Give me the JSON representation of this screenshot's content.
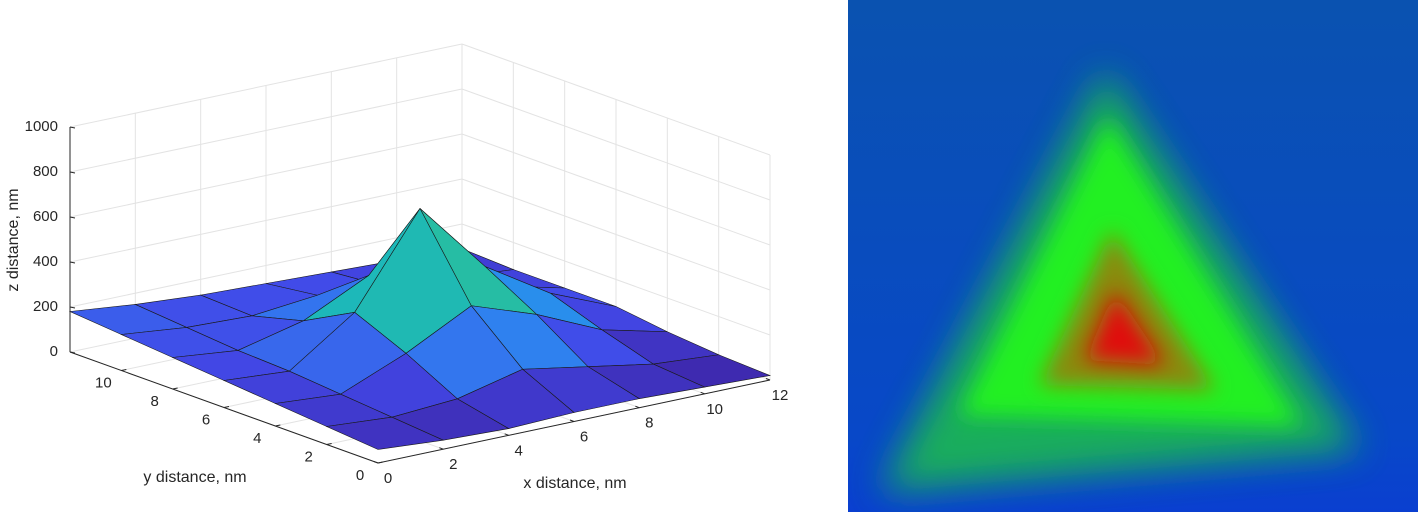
{
  "chart_data": {
    "type": "surface",
    "xlabel": "x distance, nm",
    "ylabel": "y distance, nm",
    "zlabel": "z distance, nm",
    "x": [
      0,
      2,
      4,
      6,
      8,
      10,
      12
    ],
    "y": [
      0,
      2,
      4,
      6,
      8,
      10,
      12
    ],
    "z": [
      [
        60,
        40,
        30,
        40,
        40,
        30,
        20
      ],
      [
        80,
        60,
        80,
        150,
        100,
        50,
        30
      ],
      [
        100,
        80,
        200,
        350,
        250,
        120,
        50
      ],
      [
        120,
        100,
        300,
        700,
        380,
        200,
        80
      ],
      [
        140,
        110,
        180,
        320,
        250,
        150,
        80
      ],
      [
        160,
        130,
        120,
        150,
        130,
        100,
        80
      ],
      [
        180,
        150,
        130,
        120,
        110,
        100,
        90
      ]
    ],
    "xlim": [
      0,
      12
    ],
    "ylim": [
      0,
      12
    ],
    "zlim": [
      0,
      1000
    ],
    "xticks": [
      0,
      2,
      4,
      6,
      8,
      10,
      12
    ],
    "yticks": [
      0,
      2,
      4,
      6,
      8,
      10
    ],
    "zticks": [
      0,
      200,
      400,
      600,
      800,
      1000
    ],
    "grid": true,
    "colormap": "parula"
  }
}
